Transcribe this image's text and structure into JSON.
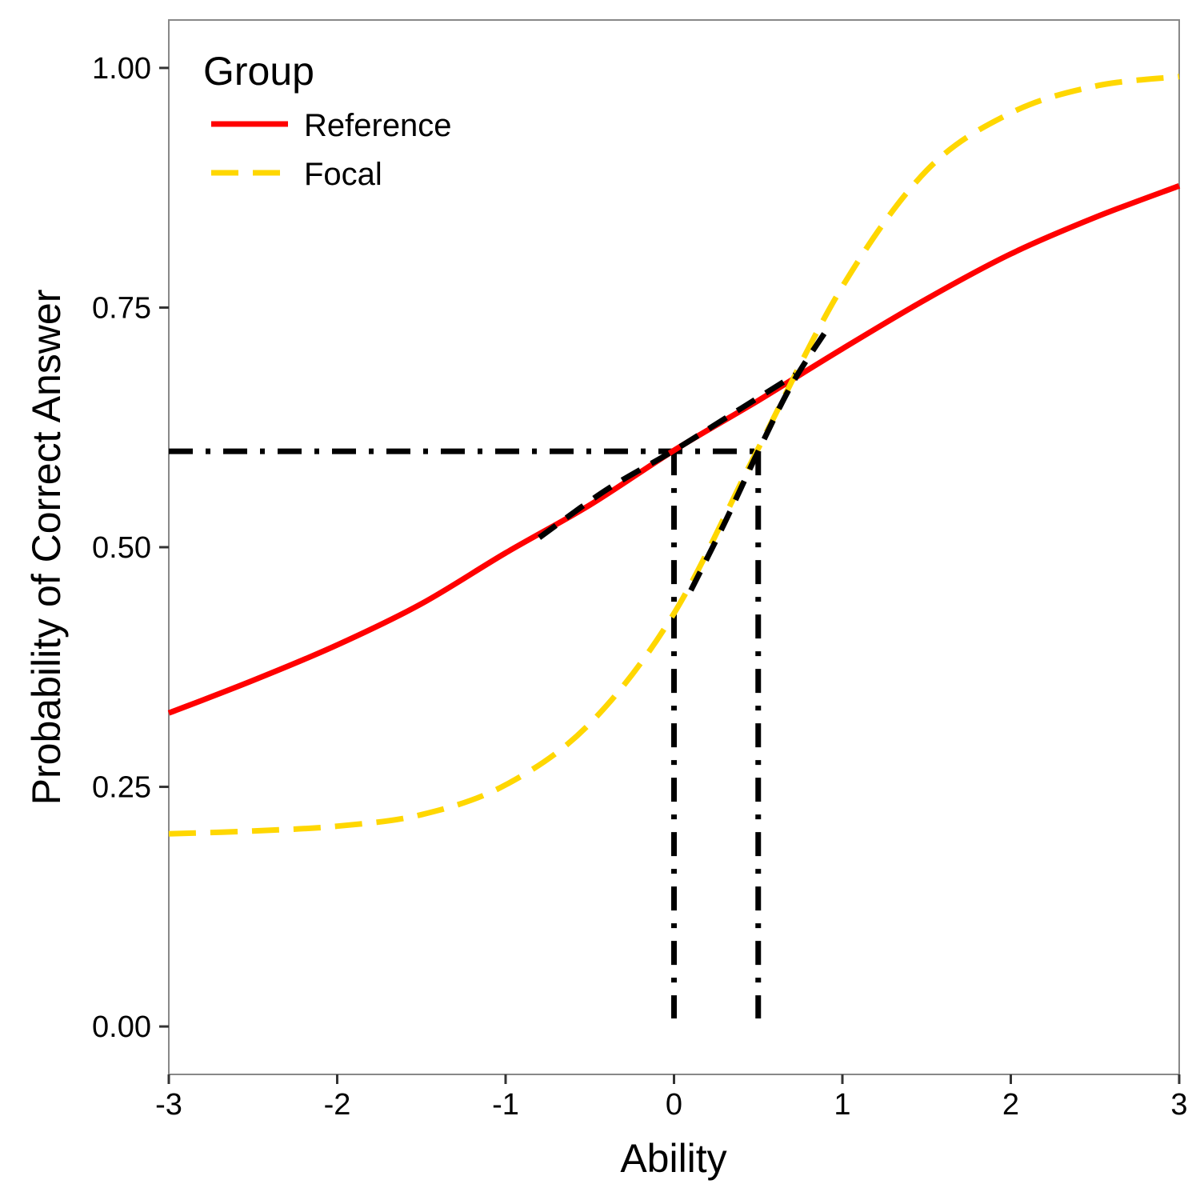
{
  "chart_data": {
    "type": "line",
    "title": "",
    "xlabel": "Ability",
    "ylabel": "Probability of Correct Answer",
    "xlim": [
      -3,
      3
    ],
    "ylim": [
      -0.05,
      1.05
    ],
    "xticks": [
      -3,
      -2,
      -1,
      0,
      1,
      2,
      3
    ],
    "xtick_labels": [
      "-3",
      "-2",
      "-1",
      "0",
      "1",
      "2",
      "3"
    ],
    "yticks": [
      0,
      0.25,
      0.5,
      0.75,
      1.0
    ],
    "ytick_labels": [
      "0.00",
      "0.25",
      "0.50",
      "0.75",
      "1.00"
    ],
    "grid": false,
    "legend": {
      "title": "Group",
      "position": "top-left"
    },
    "series": [
      {
        "name": "Reference",
        "color": "#ff0000",
        "style": "solid",
        "x": [
          -3,
          -2.5,
          -2,
          -1.5,
          -1,
          -0.5,
          0,
          0.5,
          1,
          1.5,
          2,
          2.5,
          3
        ],
        "y": [
          0.327,
          0.361,
          0.398,
          0.441,
          0.494,
          0.544,
          0.601,
          0.653,
          0.707,
          0.759,
          0.806,
          0.844,
          0.877
        ]
      },
      {
        "name": "Focal",
        "color": "#ffd700",
        "style": "dashed",
        "x": [
          -3,
          -2.5,
          -2,
          -1.5,
          -1,
          -0.5,
          0,
          0.5,
          1,
          1.5,
          2,
          2.5,
          3
        ],
        "y": [
          0.201,
          0.204,
          0.209,
          0.221,
          0.252,
          0.316,
          0.431,
          0.603,
          0.772,
          0.893,
          0.953,
          0.981,
          0.991
        ]
      }
    ],
    "annotations": {
      "color": "#000000",
      "horizontal_dashdot": {
        "y": 0.6,
        "x_from": -3,
        "x_to": 0.5
      },
      "vertical_dashdot": [
        {
          "x": 0,
          "y_from": 0,
          "y_to": 0.6
        },
        {
          "x": 0.5,
          "y_from": 0,
          "y_to": 0.6
        }
      ],
      "dashed_overlays": [
        {
          "x": [
            -0.8,
            -0.4,
            0,
            0.4,
            0.72
          ],
          "y": [
            0.51,
            0.56,
            0.601,
            0.645,
            0.68
          ]
        },
        {
          "x": [
            0.1,
            0.3,
            0.5,
            0.7,
            0.9
          ],
          "y": [
            0.455,
            0.525,
            0.6,
            0.67,
            0.725
          ]
        }
      ]
    }
  }
}
